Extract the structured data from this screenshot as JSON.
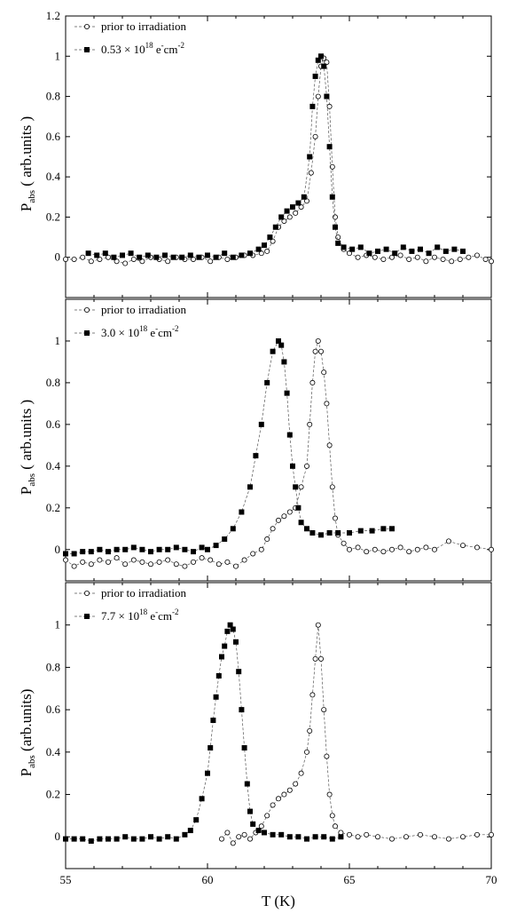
{
  "chart_data": [
    {
      "type": "scatter",
      "xlabel": "",
      "ylabel": "P",
      "ylabel_sub": "abs",
      "ylabel_rest": " ( arb.units )",
      "xlim": [
        55,
        70
      ],
      "ylim": [
        -0.2,
        1.2
      ],
      "yticks": [
        0,
        0.2,
        0.4,
        0.6,
        0.8,
        1,
        1.2
      ],
      "legend_position": "top-left",
      "series": [
        {
          "name": "prior to irradiation",
          "marker": "open-circle",
          "x": [
            55.0,
            55.3,
            55.6,
            55.9,
            56.2,
            56.5,
            56.8,
            57.1,
            57.4,
            57.7,
            58.0,
            58.3,
            58.6,
            58.9,
            59.2,
            59.5,
            59.8,
            60.1,
            60.4,
            60.7,
            61.0,
            61.3,
            61.6,
            61.9,
            62.1,
            62.3,
            62.5,
            62.7,
            62.9,
            63.1,
            63.3,
            63.5,
            63.65,
            63.8,
            63.9,
            64.0,
            64.1,
            64.2,
            64.3,
            64.4,
            64.5,
            64.6,
            64.8,
            65.0,
            65.3,
            65.6,
            65.9,
            66.2,
            66.5,
            66.8,
            67.1,
            67.4,
            67.7,
            68.0,
            68.3,
            68.6,
            68.9,
            69.2,
            69.5,
            69.8,
            70.0
          ],
          "y": [
            -0.01,
            -0.01,
            0.0,
            -0.02,
            -0.01,
            0.0,
            -0.02,
            -0.03,
            -0.01,
            -0.02,
            0.0,
            -0.01,
            -0.02,
            0.0,
            -0.01,
            -0.01,
            0.0,
            -0.02,
            0.0,
            -0.01,
            0.0,
            0.01,
            0.01,
            0.02,
            0.03,
            0.08,
            0.15,
            0.18,
            0.2,
            0.22,
            0.25,
            0.28,
            0.42,
            0.6,
            0.8,
            0.95,
            0.99,
            0.97,
            0.75,
            0.45,
            0.2,
            0.1,
            0.04,
            0.02,
            0.0,
            0.01,
            0.0,
            -0.01,
            0.0,
            0.01,
            -0.01,
            0.0,
            -0.02,
            0.0,
            -0.01,
            -0.02,
            -0.01,
            0.0,
            0.01,
            -0.01,
            -0.02
          ]
        },
        {
          "name": "0.53 × 10¹⁸ e⁻cm⁻²",
          "name_base": "0.53 × 10",
          "name_exp": "18",
          "name_unit": " e",
          "name_unit_exp": "-",
          "name_unit2": "cm",
          "name_unit2_exp": "-2",
          "marker": "filled-square",
          "x": [
            55.8,
            56.1,
            56.4,
            56.7,
            57.0,
            57.3,
            57.6,
            57.9,
            58.2,
            58.5,
            58.8,
            59.1,
            59.4,
            59.7,
            60.0,
            60.3,
            60.6,
            60.9,
            61.2,
            61.5,
            61.8,
            62.0,
            62.2,
            62.4,
            62.6,
            62.8,
            63.0,
            63.2,
            63.4,
            63.6,
            63.7,
            63.8,
            63.9,
            64.0,
            64.1,
            64.2,
            64.3,
            64.4,
            64.5,
            64.6,
            64.8,
            65.1,
            65.4,
            65.7,
            66.0,
            66.3,
            66.6,
            66.9,
            67.2,
            67.5,
            67.8,
            68.1,
            68.4,
            68.7,
            69.0
          ],
          "y": [
            0.02,
            0.01,
            0.02,
            0.0,
            0.01,
            0.02,
            0.0,
            0.01,
            0.0,
            0.01,
            0.0,
            0.0,
            0.01,
            0.0,
            0.01,
            0.0,
            0.02,
            0.0,
            0.01,
            0.02,
            0.04,
            0.06,
            0.1,
            0.15,
            0.2,
            0.23,
            0.25,
            0.27,
            0.3,
            0.5,
            0.75,
            0.9,
            0.98,
            1.0,
            0.95,
            0.8,
            0.55,
            0.3,
            0.15,
            0.07,
            0.05,
            0.04,
            0.05,
            0.02,
            0.03,
            0.04,
            0.02,
            0.05,
            0.03,
            0.04,
            0.02,
            0.05,
            0.03,
            0.04,
            0.03
          ]
        }
      ]
    },
    {
      "type": "scatter",
      "xlabel": "",
      "ylabel": "P",
      "ylabel_sub": "abs",
      "ylabel_rest": " ( arb.units )",
      "xlim": [
        55,
        70
      ],
      "ylim": [
        -0.15,
        1.2
      ],
      "yticks": [
        0,
        0.2,
        0.4,
        0.6,
        0.8,
        1
      ],
      "legend_position": "top-left",
      "series": [
        {
          "name": "prior to irradiation",
          "marker": "open-circle",
          "x": [
            55.0,
            55.3,
            55.6,
            55.9,
            56.2,
            56.5,
            56.8,
            57.1,
            57.4,
            57.7,
            58.0,
            58.3,
            58.6,
            58.9,
            59.2,
            59.5,
            59.8,
            60.1,
            60.4,
            60.7,
            61.0,
            61.3,
            61.6,
            61.9,
            62.1,
            62.3,
            62.5,
            62.7,
            62.9,
            63.1,
            63.3,
            63.5,
            63.6,
            63.7,
            63.8,
            63.9,
            64.0,
            64.1,
            64.2,
            64.3,
            64.4,
            64.5,
            64.6,
            64.8,
            65.0,
            65.3,
            65.6,
            65.9,
            66.2,
            66.5,
            66.8,
            67.1,
            67.4,
            67.7,
            68.0,
            68.5,
            69.0,
            69.5,
            70.0
          ],
          "y": [
            -0.05,
            -0.08,
            -0.06,
            -0.07,
            -0.05,
            -0.06,
            -0.04,
            -0.07,
            -0.05,
            -0.06,
            -0.07,
            -0.06,
            -0.05,
            -0.07,
            -0.08,
            -0.06,
            -0.04,
            -0.05,
            -0.07,
            -0.06,
            -0.08,
            -0.05,
            -0.02,
            0.0,
            0.05,
            0.1,
            0.14,
            0.16,
            0.18,
            0.2,
            0.3,
            0.4,
            0.6,
            0.8,
            0.95,
            1.0,
            0.95,
            0.85,
            0.7,
            0.5,
            0.3,
            0.15,
            0.07,
            0.03,
            0.0,
            0.01,
            -0.01,
            0.0,
            -0.01,
            0.0,
            0.01,
            -0.01,
            0.0,
            0.01,
            0.0,
            0.04,
            0.02,
            0.01,
            0.0
          ]
        },
        {
          "name": "3.0 × 10¹⁸ e⁻cm⁻²",
          "name_base": "3.0 × 10",
          "name_exp": "18",
          "name_unit": " e",
          "name_unit_exp": "-",
          "name_unit2": "cm",
          "name_unit2_exp": "-2",
          "marker": "filled-square",
          "x": [
            55.0,
            55.3,
            55.6,
            55.9,
            56.2,
            56.5,
            56.8,
            57.1,
            57.4,
            57.7,
            58.0,
            58.3,
            58.6,
            58.9,
            59.2,
            59.5,
            59.8,
            60.0,
            60.3,
            60.6,
            60.9,
            61.2,
            61.5,
            61.7,
            61.9,
            62.1,
            62.3,
            62.5,
            62.6,
            62.7,
            62.8,
            62.9,
            63.0,
            63.1,
            63.2,
            63.3,
            63.5,
            63.7,
            64.0,
            64.3,
            64.6,
            65.0,
            65.4,
            65.8,
            66.2,
            66.5
          ],
          "y": [
            -0.02,
            -0.02,
            -0.01,
            -0.01,
            0.0,
            -0.01,
            0.0,
            0.0,
            0.01,
            0.0,
            -0.01,
            0.0,
            0.0,
            0.01,
            0.0,
            -0.01,
            0.01,
            0.0,
            0.02,
            0.05,
            0.1,
            0.18,
            0.3,
            0.45,
            0.6,
            0.8,
            0.95,
            1.0,
            0.98,
            0.9,
            0.75,
            0.55,
            0.4,
            0.3,
            0.2,
            0.13,
            0.1,
            0.08,
            0.07,
            0.08,
            0.08,
            0.08,
            0.09,
            0.09,
            0.1,
            0.1
          ]
        }
      ]
    },
    {
      "type": "scatter",
      "xlabel": "T (K)",
      "ylabel": "P",
      "ylabel_sub": "abs",
      "ylabel_rest": " (arb.units)",
      "xlim": [
        55,
        70
      ],
      "ylim": [
        -0.15,
        1.2
      ],
      "xticks": [
        55,
        60,
        65,
        70
      ],
      "yticks": [
        0,
        0.2,
        0.4,
        0.6,
        0.8,
        1
      ],
      "legend_position": "top-left",
      "series": [
        {
          "name": "prior to irradiation",
          "marker": "open-circle",
          "x": [
            60.5,
            60.7,
            60.9,
            61.1,
            61.3,
            61.5,
            61.7,
            61.9,
            62.1,
            62.3,
            62.5,
            62.7,
            62.9,
            63.1,
            63.3,
            63.5,
            63.6,
            63.7,
            63.8,
            63.9,
            64.0,
            64.1,
            64.2,
            64.3,
            64.4,
            64.5,
            64.7,
            65.0,
            65.3,
            65.6,
            66.0,
            66.5,
            67.0,
            67.5,
            68.0,
            68.5,
            69.0,
            69.5,
            70.0
          ],
          "y": [
            -0.01,
            0.02,
            -0.03,
            0.0,
            0.01,
            -0.01,
            0.02,
            0.05,
            0.1,
            0.15,
            0.18,
            0.2,
            0.22,
            0.25,
            0.3,
            0.4,
            0.5,
            0.67,
            0.84,
            1.0,
            0.84,
            0.6,
            0.38,
            0.2,
            0.1,
            0.05,
            0.02,
            0.01,
            0.0,
            0.01,
            0.0,
            -0.01,
            0.0,
            0.01,
            0.0,
            -0.01,
            0.0,
            0.01,
            0.01
          ]
        },
        {
          "name": "7.7 × 10¹⁸ e⁻cm⁻²",
          "name_base": "7.7 × 10",
          "name_exp": "18",
          "name_unit": " e",
          "name_unit_exp": "-",
          "name_unit2": "cm",
          "name_unit2_exp": "-2",
          "marker": "filled-square",
          "x": [
            55.0,
            55.3,
            55.6,
            55.9,
            56.2,
            56.5,
            56.8,
            57.1,
            57.4,
            57.7,
            58.0,
            58.3,
            58.6,
            58.9,
            59.2,
            59.4,
            59.6,
            59.8,
            60.0,
            60.1,
            60.2,
            60.3,
            60.4,
            60.5,
            60.6,
            60.7,
            60.8,
            60.9,
            61.0,
            61.1,
            61.2,
            61.3,
            61.4,
            61.5,
            61.6,
            61.8,
            62.0,
            62.3,
            62.6,
            62.9,
            63.2,
            63.5,
            63.8,
            64.1,
            64.4,
            64.7
          ],
          "y": [
            -0.01,
            -0.01,
            -0.01,
            -0.02,
            -0.01,
            -0.01,
            -0.01,
            0.0,
            -0.01,
            -0.01,
            0.0,
            -0.01,
            0.0,
            -0.01,
            0.01,
            0.03,
            0.08,
            0.18,
            0.3,
            0.42,
            0.55,
            0.66,
            0.76,
            0.85,
            0.9,
            0.97,
            1.0,
            0.98,
            0.92,
            0.78,
            0.6,
            0.42,
            0.25,
            0.12,
            0.06,
            0.03,
            0.02,
            0.01,
            0.01,
            0.0,
            0.0,
            -0.01,
            0.0,
            0.0,
            -0.01,
            0.0
          ]
        }
      ]
    }
  ]
}
